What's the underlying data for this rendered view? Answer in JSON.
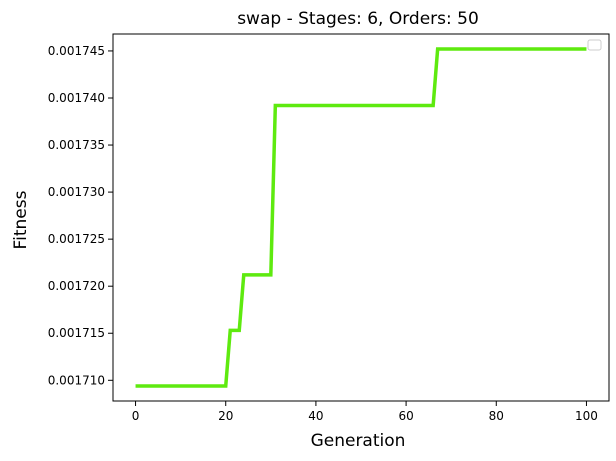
{
  "chart_data": {
    "type": "line",
    "title": "swap - Stages: 6, Orders: 50",
    "xlabel": "Generation",
    "ylabel": "Fitness",
    "xlim": [
      -5,
      105
    ],
    "ylim": [
      0.0017078,
      0.0017468
    ],
    "x_ticks": [
      0,
      20,
      40,
      60,
      80,
      100
    ],
    "x_tick_labels": [
      "0",
      "20",
      "40",
      "60",
      "80",
      "100"
    ],
    "y_ticks": [
      0.00171,
      0.001715,
      0.00172,
      0.001725,
      0.00173,
      0.001735,
      0.00174,
      0.001745
    ],
    "y_tick_labels": [
      "0.001710",
      "0.001715",
      "0.001720",
      "0.001725",
      "0.001730",
      "0.001735",
      "0.001740",
      "0.001745"
    ],
    "grid": false,
    "legend": "top-right (empty)",
    "series": [
      {
        "color": "#5eea0f",
        "x": [
          0,
          20,
          21,
          23,
          24,
          30,
          31,
          66,
          67,
          100
        ],
        "y": [
          0.0017094,
          0.0017094,
          0.0017153,
          0.0017153,
          0.0017212,
          0.0017212,
          0.0017392,
          0.0017392,
          0.0017452,
          0.0017452
        ]
      }
    ]
  }
}
